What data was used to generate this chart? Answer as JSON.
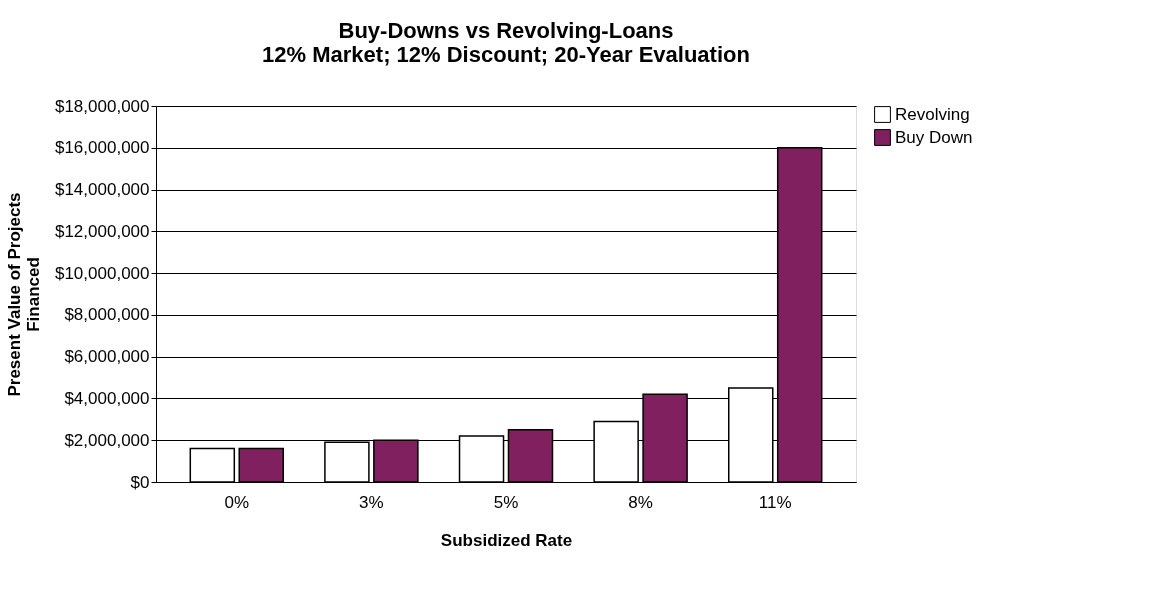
{
  "chart_data": {
    "type": "bar",
    "title": [
      "Buy-Downs vs Revolving-Loans",
      "12% Market; 12% Discount; 20-Year Evaluation"
    ],
    "xlabel": "Subsidized Rate",
    "ylabel": [
      "Present Value of Projects",
      "Financed"
    ],
    "categories": [
      "0%",
      "3%",
      "5%",
      "8%",
      "11%"
    ],
    "series": [
      {
        "name": "Revolving",
        "color": "#ffffff",
        "values": [
          1600000,
          1900000,
          2200000,
          2900000,
          4500000
        ]
      },
      {
        "name": "Buy Down",
        "color": "#80205f",
        "values": [
          1600000,
          2000000,
          2500000,
          4200000,
          16000000
        ]
      }
    ],
    "ylim": [
      0,
      18000000
    ],
    "yticks": [
      {
        "value": 0,
        "label": "$0"
      },
      {
        "value": 2000000,
        "label": "$2,000,000"
      },
      {
        "value": 4000000,
        "label": "$4,000,000"
      },
      {
        "value": 6000000,
        "label": "$6,000,000"
      },
      {
        "value": 8000000,
        "label": "$8,000,000"
      },
      {
        "value": 10000000,
        "label": "$10,000,000"
      },
      {
        "value": 12000000,
        "label": "$12,000,000"
      },
      {
        "value": 14000000,
        "label": "$14,000,000"
      },
      {
        "value": 16000000,
        "label": "$16,000,000"
      },
      {
        "value": 18000000,
        "label": "$18,000,000"
      }
    ],
    "grid": "y",
    "legend": "right"
  }
}
